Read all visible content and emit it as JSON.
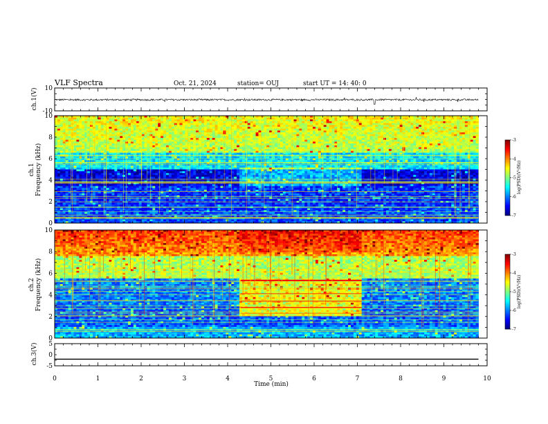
{
  "header": {
    "title": "VLF Spectra",
    "date": "Oct. 21, 2024",
    "station": "station= OUJ",
    "start": "start  UT =   14: 40: 0"
  },
  "colors": {
    "low": "#000090",
    "mid": "#00ff00",
    "high": "#ff0000",
    "waveform": "#000000"
  },
  "chart_data": [
    {
      "type": "line",
      "panel": "ch1-waveform",
      "ylabel": "ch.1(V)",
      "ylim": [
        -10,
        10
      ],
      "y_ticks": [
        "10",
        "-10"
      ],
      "x_range_min": [
        0,
        10
      ],
      "series": [
        {
          "values_description_min": [
            0,
            9.8
          ],
          "amplitude": 1
        }
      ]
    },
    {
      "type": "heatmap",
      "panel": "ch1-spectrogram",
      "ylabel": "ch.1\nFrequency (kHz)",
      "ylabel_parts": [
        "ch.1",
        "Frequency (kHz)"
      ],
      "ylim": [
        0,
        10
      ],
      "y_ticks": [
        "0",
        "2",
        "4",
        "6",
        "8",
        "10"
      ],
      "x_range_min": [
        0,
        10
      ],
      "data_end_min": 9.8,
      "colorbar": {
        "label": "log(PSD)(V²/Hz)",
        "range": [
          -7,
          -3
        ],
        "ticks": [
          "-3",
          "-4",
          "-5",
          "-6",
          "-7"
        ]
      }
    },
    {
      "type": "heatmap",
      "panel": "ch2-spectrogram",
      "ylabel_parts": [
        "ch.2",
        "Frequency (kHz)"
      ],
      "ylim": [
        0,
        10
      ],
      "y_ticks": [
        "0",
        "2",
        "4",
        "6",
        "8",
        "10"
      ],
      "x_range_min": [
        0,
        10
      ],
      "data_end_min": 9.8,
      "event_window_min": [
        4.3,
        7.1
      ],
      "colorbar": {
        "label": "log(PSD)(V²/Hz)",
        "range": [
          -7,
          -3
        ],
        "ticks": [
          "-3",
          "-4",
          "-5",
          "-6",
          "-7"
        ]
      }
    },
    {
      "type": "line",
      "panel": "ch3-waveform",
      "ylabel": "ch.3(V)",
      "ylim": [
        -5,
        5
      ],
      "y_ticks": [
        "5",
        "0",
        "-5"
      ],
      "series": [
        {
          "x": [
            0,
            9.8
          ],
          "values": [
            -2,
            -2
          ]
        }
      ]
    }
  ],
  "xaxis": {
    "label": "Time (min)",
    "ticks": [
      "0",
      "1",
      "2",
      "3",
      "4",
      "5",
      "6",
      "7",
      "8",
      "9",
      "10"
    ]
  }
}
